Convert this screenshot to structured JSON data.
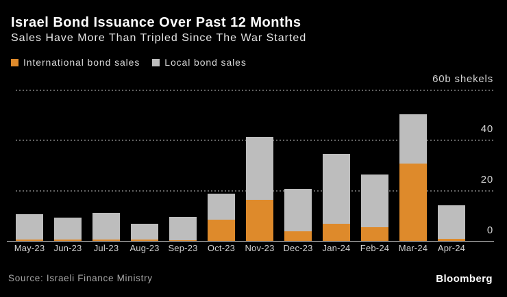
{
  "header": {
    "title": "Israel Bond Issuance Over Past 12 Months",
    "subtitle": "Sales Have More Than Tripled Since The War Started"
  },
  "legend": [
    {
      "label": "International bond sales",
      "color": "#de8a2b",
      "icon": "orange-square-swatch"
    },
    {
      "label": "Local bond sales",
      "color": "#bdbdbd",
      "icon": "gray-square-swatch"
    }
  ],
  "chart_data": {
    "type": "bar",
    "stacked": true,
    "title": "Israel Bond Issuance Over Past 12 Months",
    "subtitle": "Sales Have More Than Tripled Since The War Started",
    "unit_label": "60b shekels",
    "categories": [
      "May-23",
      "Jun-23",
      "Jul-23",
      "Aug-23",
      "Sep-23",
      "Oct-23",
      "Nov-23",
      "Dec-23",
      "Jan-24",
      "Feb-24",
      "Mar-24",
      "Apr-24"
    ],
    "series": [
      {
        "name": "International bond sales",
        "color": "#de8a2b",
        "values": [
          0.5,
          0.6,
          0.5,
          0.6,
          0.3,
          8.5,
          16.3,
          3.9,
          6.9,
          5.5,
          30.5,
          0.8
        ]
      },
      {
        "name": "Local bond sales",
        "color": "#bdbdbd",
        "values": [
          10.2,
          8.7,
          10.7,
          6.3,
          9.3,
          10.2,
          25.0,
          16.7,
          27.4,
          20.7,
          19.6,
          13.2
        ]
      }
    ],
    "y_ticks": [
      {
        "value": 60,
        "label": "60b shekels"
      },
      {
        "value": 40,
        "label": "40"
      },
      {
        "value": 20,
        "label": "20"
      },
      {
        "value": 0,
        "label": "0"
      }
    ],
    "ylim": [
      0,
      60
    ],
    "grid": "horizontal-dotted",
    "tick_side": "right",
    "legend_position": "top-left"
  },
  "footer": {
    "source": "Source: Israeli Finance Ministry",
    "brand": "Bloomberg"
  },
  "colors": {
    "background": "#000000",
    "title_text": "#ffffff",
    "subtitle_text": "#e6e6e6",
    "axis_text": "#d2d2d2",
    "grid_line": "#636363",
    "baseline": "#c9c9c9",
    "source_text": "#a6a6a6",
    "international": "#de8a2b",
    "local": "#bdbdbd"
  }
}
